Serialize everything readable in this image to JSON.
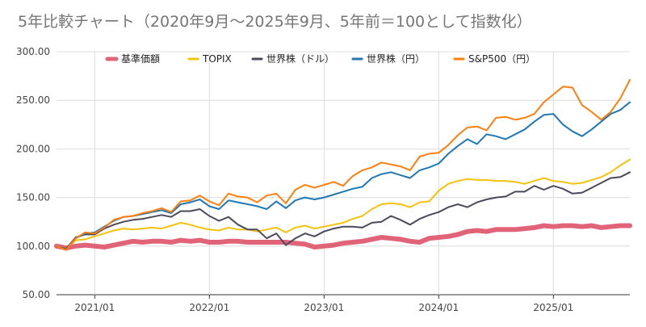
{
  "chart_data": {
    "type": "line",
    "title": "5年比較チャート（2020年9月〜2025年9月、5年前＝100として指数化）",
    "xlabel": "",
    "ylabel": "",
    "x_tick_labels": [
      "2021/01",
      "2022/01",
      "2023/01",
      "2024/01",
      "2025/01"
    ],
    "y_ticks": [
      "50.00",
      "100.00",
      "150.00",
      "200.00",
      "250.00",
      "300.00"
    ],
    "ylim": [
      50,
      300
    ],
    "x": [
      "2020/09",
      "2020/10",
      "2020/11",
      "2020/12",
      "2021/01",
      "2021/02",
      "2021/03",
      "2021/04",
      "2021/05",
      "2021/06",
      "2021/07",
      "2021/08",
      "2021/09",
      "2021/10",
      "2021/11",
      "2021/12",
      "2022/01",
      "2022/02",
      "2022/03",
      "2022/04",
      "2022/05",
      "2022/06",
      "2022/07",
      "2022/08",
      "2022/09",
      "2022/10",
      "2022/11",
      "2022/12",
      "2023/01",
      "2023/02",
      "2023/03",
      "2023/04",
      "2023/05",
      "2023/06",
      "2023/07",
      "2023/08",
      "2023/09",
      "2023/10",
      "2023/11",
      "2023/12",
      "2024/01",
      "2024/02",
      "2024/03",
      "2024/04",
      "2024/05",
      "2024/06",
      "2024/07",
      "2024/08",
      "2024/09",
      "2024/10",
      "2024/11",
      "2024/12",
      "2025/01",
      "2025/02",
      "2025/03",
      "2025/04",
      "2025/05",
      "2025/06",
      "2025/07",
      "2025/08",
      "2025/09"
    ],
    "legend_position": "top",
    "grid": true,
    "series": [
      {
        "name": "基準価額",
        "color": "#e06377",
        "values": [
          100,
          98,
          100,
          101,
          100,
          99,
          101,
          103,
          105,
          104,
          105,
          105,
          104,
          106,
          105,
          106,
          104,
          104,
          105,
          105,
          104,
          104,
          104,
          104,
          104,
          103,
          102,
          99,
          100,
          101,
          103,
          104,
          105,
          107,
          109,
          108,
          107,
          105,
          104,
          108,
          109,
          110,
          112,
          115,
          116,
          115,
          117,
          117,
          117,
          118,
          119,
          121,
          120,
          121,
          121,
          120,
          121,
          119,
          120,
          121,
          121
        ]
      },
      {
        "name": "TOPIX",
        "color": "#f4c20d",
        "values": [
          100,
          97,
          106,
          107,
          110,
          113,
          116,
          118,
          117,
          118,
          119,
          118,
          121,
          124,
          122,
          119,
          117,
          116,
          119,
          117,
          117,
          115,
          117,
          119,
          114,
          119,
          121,
          118,
          120,
          122,
          124,
          128,
          131,
          138,
          143,
          144,
          143,
          140,
          145,
          146,
          157,
          164,
          167,
          169,
          168,
          168,
          167,
          167,
          166,
          164,
          167,
          170,
          167,
          166,
          164,
          165,
          168,
          171,
          176,
          183,
          189
        ]
      },
      {
        "name": "世界株（ドル）",
        "color": "#4a4a5a",
        "values": [
          100,
          97,
          109,
          112,
          112,
          118,
          122,
          125,
          127,
          128,
          130,
          132,
          130,
          136,
          136,
          138,
          131,
          126,
          130,
          122,
          117,
          117,
          108,
          113,
          101,
          108,
          113,
          110,
          115,
          118,
          120,
          120,
          119,
          124,
          125,
          131,
          127,
          122,
          128,
          132,
          135,
          140,
          143,
          140,
          145,
          148,
          150,
          151,
          156,
          156,
          162,
          158,
          162,
          159,
          154,
          155,
          160,
          165,
          170,
          171,
          176
        ]
      },
      {
        "name": "世界株（円）",
        "color": "#1f77b4",
        "values": [
          100,
          96,
          108,
          113,
          114,
          120,
          126,
          130,
          131,
          133,
          135,
          137,
          134,
          143,
          145,
          148,
          141,
          138,
          147,
          145,
          143,
          141,
          138,
          146,
          139,
          147,
          150,
          148,
          150,
          153,
          156,
          159,
          161,
          170,
          174,
          176,
          173,
          170,
          178,
          181,
          185,
          195,
          203,
          210,
          205,
          215,
          213,
          210,
          215,
          220,
          228,
          235,
          236,
          225,
          218,
          213,
          220,
          228,
          236,
          240,
          248
        ]
      },
      {
        "name": "S&P500（円）",
        "color": "#ff7f0e",
        "values": [
          100,
          96,
          108,
          114,
          113,
          119,
          127,
          130,
          131,
          134,
          136,
          139,
          135,
          146,
          147,
          152,
          146,
          142,
          154,
          151,
          150,
          145,
          152,
          154,
          144,
          158,
          163,
          160,
          163,
          166,
          162,
          172,
          178,
          181,
          186,
          184,
          182,
          178,
          192,
          195,
          196,
          204,
          214,
          222,
          223,
          219,
          232,
          233,
          230,
          232,
          236,
          248,
          256,
          264,
          263,
          245,
          238,
          230,
          238,
          252,
          271
        ]
      }
    ]
  }
}
